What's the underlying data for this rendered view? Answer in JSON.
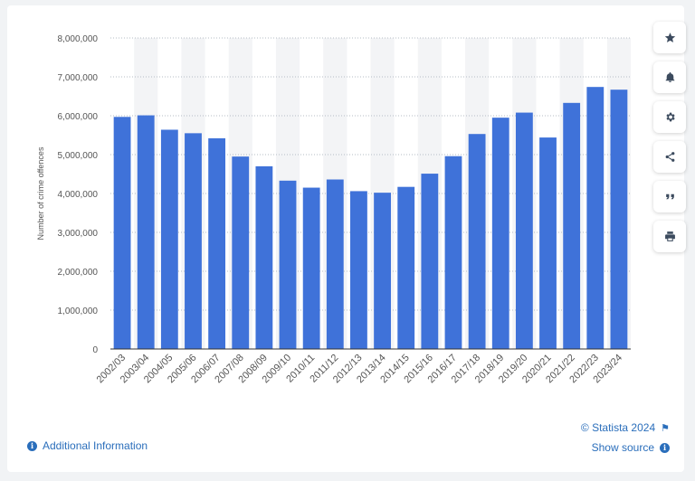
{
  "chart_data": {
    "type": "bar",
    "categories": [
      "2002/03",
      "2003/04",
      "2004/05",
      "2005/06",
      "2006/07",
      "2007/08",
      "2008/09",
      "2009/10",
      "2010/11",
      "2011/12",
      "2012/13",
      "2013/14",
      "2014/15",
      "2015/16",
      "2016/17",
      "2017/18",
      "2018/19",
      "2019/20",
      "2020/21",
      "2021/22",
      "2022/23",
      "2023/24"
    ],
    "values": [
      5970000,
      6010000,
      5640000,
      5550000,
      5420000,
      4950000,
      4700000,
      4330000,
      4150000,
      4360000,
      4060000,
      4020000,
      4170000,
      4510000,
      4960000,
      5530000,
      5950000,
      6080000,
      5440000,
      6330000,
      6740000,
      6670000
    ],
    "ylabel": "Number of crime offences",
    "ylim": [
      0,
      8000000
    ],
    "yticks": [
      "0",
      "1,000,000",
      "2,000,000",
      "3,000,000",
      "4,000,000",
      "5,000,000",
      "6,000,000",
      "7,000,000",
      "8,000,000"
    ],
    "bar_color": "#3f72d9",
    "grid": true,
    "legend": "none"
  },
  "toolbar": {
    "buttons": [
      {
        "name": "favorite-button",
        "icon": "star-icon"
      },
      {
        "name": "notification-button",
        "icon": "bell-icon"
      },
      {
        "name": "settings-button",
        "icon": "gear-icon"
      },
      {
        "name": "share-button",
        "icon": "share-icon"
      },
      {
        "name": "cite-button",
        "icon": "quote-icon"
      },
      {
        "name": "print-button",
        "icon": "printer-icon"
      }
    ]
  },
  "footer": {
    "additional_info": "Additional Information",
    "copyright": "© Statista 2024",
    "show_source": "Show source"
  }
}
